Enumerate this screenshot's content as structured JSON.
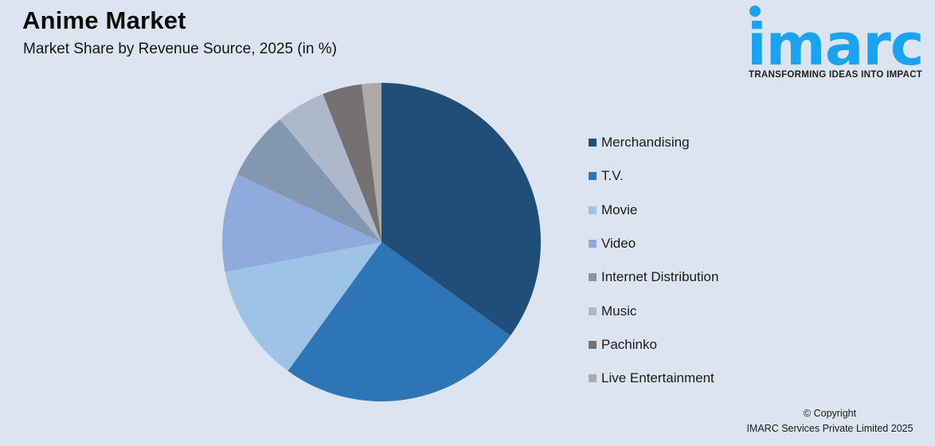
{
  "header": {
    "title": "Anime Market",
    "subtitle": "Market Share by Revenue Source, 2025 (in %)"
  },
  "logo": {
    "word": "imarc",
    "tagline": "TRANSFORMING IDEAS INTO IMPACT",
    "color": "#1aa3f0"
  },
  "footer": {
    "line1": "© Copyright",
    "line2": "IMARC Services Private Limited 2025"
  },
  "chart_data": {
    "type": "pie",
    "title": "Anime Market",
    "subtitle": "Market Share by Revenue Source, 2025 (in %)",
    "categories": [
      "Merchandising",
      "T.V.",
      "Movie",
      "Video",
      "Internet Distribution",
      "Music",
      "Pachinko",
      "Live Entertainment"
    ],
    "values": [
      35,
      25,
      12,
      10,
      7,
      5,
      4,
      2
    ],
    "colors": [
      "#1f4e79",
      "#2e75b6",
      "#9dc3e6",
      "#8faadc",
      "#8497b0",
      "#adb9ca",
      "#767171",
      "#aeaaaa"
    ],
    "start_angle_deg": 0,
    "direction": "clockwise",
    "legend_position": "right",
    "data_labels": false
  }
}
